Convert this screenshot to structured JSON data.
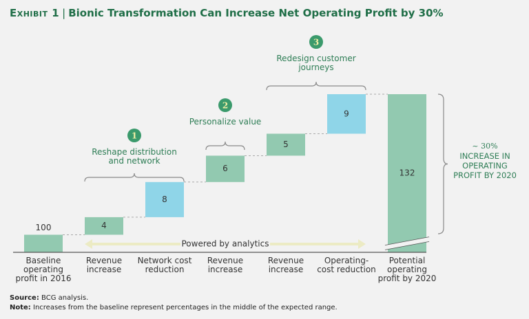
{
  "chart_data": {
    "type": "waterfall",
    "exhibit": "Exhibit 1",
    "title": "Bionic Transformation Can Increase Net Operating Profit by 30%",
    "categories": [
      "Baseline operating profit in 2016",
      "Revenue increase",
      "Network cost reduction",
      "Revenue increase",
      "Revenue increase",
      "Operating-cost reduction",
      "Potential operating profit by 2020"
    ],
    "values": [
      100,
      4,
      8,
      6,
      5,
      9,
      132
    ],
    "bar_kinds": [
      "total",
      "increase",
      "increase",
      "increase",
      "increase",
      "increase",
      "total"
    ],
    "colors": [
      "#92c9b0",
      "#92c9b0",
      "#8fd5e8",
      "#92c9b0",
      "#92c9b0",
      "#8fd5e8",
      "#92c9b0"
    ],
    "ylim": [
      96,
      132
    ],
    "axis_break": true,
    "groups": [
      {
        "number": 1,
        "label": "Reshape distribution and network"
      },
      {
        "number": 2,
        "label": "Personalize value"
      },
      {
        "number": 3,
        "label": "Redesign customer journeys"
      }
    ],
    "arrow_label": "Powered by analytics",
    "total_annotation": {
      "headline": "~ 30%",
      "text": "INCREASE IN OPERATING PROFIT BY 2020"
    },
    "source_label": "Source:",
    "source": "BCG analysis.",
    "note_label": "Note:",
    "note": "Increases from the baseline represent percentages in the middle of the expected range."
  }
}
